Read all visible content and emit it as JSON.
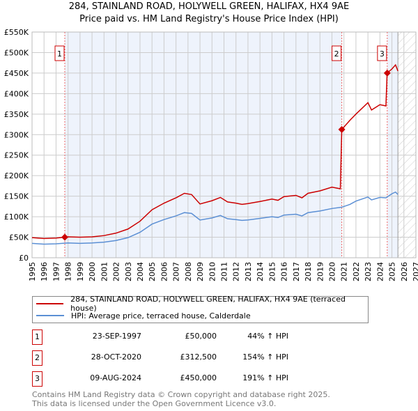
{
  "title": "284, STAINLAND ROAD, HOLYWELL GREEN, HALIFAX, HX4 9AE",
  "subtitle": "Price paid vs. HM Land Registry's House Price Index (HPI)",
  "chart_data": {
    "type": "line",
    "title": "284, STAINLAND ROAD, HOLYWELL GREEN, HALIFAX, HX4 9AE",
    "subtitle": "Price paid vs. HM Land Registry's House Price Index (HPI)",
    "xlim": [
      1995,
      2027
    ],
    "ylim": [
      0,
      550000
    ],
    "x_ticks": [
      "1995",
      "1996",
      "1997",
      "1998",
      "1999",
      "2000",
      "2001",
      "2002",
      "2003",
      "2004",
      "2005",
      "2006",
      "2007",
      "2008",
      "2009",
      "2010",
      "2011",
      "2012",
      "2013",
      "2014",
      "2015",
      "2016",
      "2017",
      "2018",
      "2019",
      "2020",
      "2021",
      "2022",
      "2023",
      "2024",
      "2025",
      "2026",
      "2027"
    ],
    "y_ticks": [
      "£0",
      "£50K",
      "£100K",
      "£150K",
      "£200K",
      "£250K",
      "£300K",
      "£350K",
      "£400K",
      "£450K",
      "£500K",
      "£550K"
    ],
    "grid": true,
    "forecast_hatch_from": 2025.5,
    "series": [
      {
        "name": "284, STAINLAND ROAD, HOLYWELL GREEN, HALIFAX, HX4 9AE (terraced house)",
        "color": "#cc0000",
        "x": [
          1995,
          1996,
          1997,
          1997.73,
          1998,
          1999,
          2000,
          2001,
          2002,
          2003,
          2004,
          2005,
          2006,
          2007,
          2007.7,
          2008.3,
          2009,
          2010,
          2010.7,
          2011.3,
          2012,
          2012.5,
          2013,
          2014,
          2015,
          2015.5,
          2016,
          2017,
          2017.5,
          2018,
          2019,
          2020,
          2020.7,
          2020.82,
          2021.5,
          2022,
          2023,
          2023.3,
          2024,
          2024.5,
          2024.6,
          2025,
          2025.3,
          2025.5
        ],
        "y": [
          49000,
          47000,
          48000,
          50000,
          51000,
          50000,
          51000,
          54000,
          60000,
          70000,
          89000,
          117000,
          133000,
          146000,
          157000,
          154000,
          131000,
          139000,
          147000,
          136000,
          133000,
          130000,
          132000,
          137000,
          143000,
          140000,
          149000,
          152000,
          146000,
          157000,
          163000,
          172000,
          168000,
          312500,
          335000,
          350000,
          378000,
          360000,
          373000,
          370000,
          450000,
          460000,
          470000,
          455000
        ]
      },
      {
        "name": "HPI: Average price, terraced house, Calderdale",
        "color": "#5b8fd4",
        "x": [
          1995,
          1996,
          1997,
          1998,
          1999,
          2000,
          2001,
          2002,
          2003,
          2004,
          2005,
          2006,
          2007,
          2007.7,
          2008.3,
          2009,
          2010,
          2010.7,
          2011.3,
          2012,
          2012.5,
          2013,
          2014,
          2015,
          2015.5,
          2016,
          2017,
          2017.5,
          2018,
          2019,
          2020,
          2020.8,
          2021.5,
          2022,
          2023,
          2023.3,
          2024,
          2024.5,
          2025,
          2025.3,
          2025.5
        ],
        "y": [
          35000,
          33000,
          34000,
          36000,
          35000,
          36000,
          38000,
          42000,
          49000,
          62000,
          82000,
          93000,
          102000,
          110000,
          108000,
          92000,
          97000,
          103000,
          95000,
          93000,
          91000,
          92000,
          96000,
          100000,
          98000,
          104000,
          106000,
          102000,
          110000,
          114000,
          120000,
          123000,
          130000,
          138000,
          148000,
          141000,
          147000,
          146000,
          156000,
          160000,
          154000
        ]
      }
    ],
    "sales": [
      {
        "n": "1",
        "x": 1997.73,
        "y": 50000
      },
      {
        "n": "2",
        "x": 2020.82,
        "y": 312500
      },
      {
        "n": "3",
        "x": 2024.61,
        "y": 450000
      }
    ]
  },
  "legend": {
    "red": "284, STAINLAND ROAD, HOLYWELL GREEN, HALIFAX, HX4 9AE (terraced house)",
    "blue": "HPI: Average price, terraced house, Calderdale"
  },
  "table": [
    {
      "n": "1",
      "date": "23-SEP-1997",
      "price": "£50,000",
      "hpi": "44% ↑ HPI"
    },
    {
      "n": "2",
      "date": "28-OCT-2020",
      "price": "£312,500",
      "hpi": "154% ↑ HPI"
    },
    {
      "n": "3",
      "date": "09-AUG-2024",
      "price": "£450,000",
      "hpi": "191% ↑ HPI"
    }
  ],
  "footer": [
    "Contains HM Land Registry data © Crown copyright and database right 2025.",
    "This data is licensed under the Open Government Licence v3.0."
  ]
}
